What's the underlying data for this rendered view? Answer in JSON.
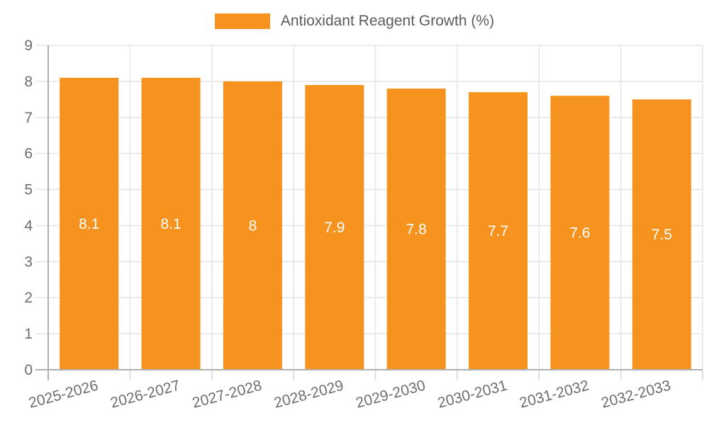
{
  "legend": {
    "label": "Antioxidant Reagent Growth (%)"
  },
  "chart_data": {
    "type": "bar",
    "title": "",
    "xlabel": "",
    "ylabel": "",
    "categories": [
      "2025-2026",
      "2026-2027",
      "2027-2028",
      "2028-2029",
      "2029-2030",
      "2030-2031",
      "2031-2032",
      "2032-2033"
    ],
    "series": [
      {
        "name": "Antioxidant Reagent Growth (%)",
        "values": [
          8.1,
          8.1,
          8,
          7.9,
          7.8,
          7.7,
          7.6,
          7.5
        ],
        "bar_labels": [
          "8.1",
          "8.1",
          "8",
          "7.9",
          "7.8",
          "7.7",
          "7.6",
          "7.5"
        ]
      }
    ],
    "ylim": [
      0,
      9
    ],
    "y_ticks": [
      0,
      1,
      2,
      3,
      4,
      5,
      6,
      7,
      8,
      9
    ],
    "grid": true,
    "legend_position": "top-center",
    "x_tick_label_rotation_deg": -15
  },
  "colors": {
    "bar": "#F6921E",
    "bar_value_label": "#FFFFFF",
    "axis_text": "#6E6E6E",
    "gridline": "#E5E5E5",
    "tick": "#D6D6D6",
    "axis_line": "#B0B0B0",
    "legend_text": "#595B5D"
  }
}
